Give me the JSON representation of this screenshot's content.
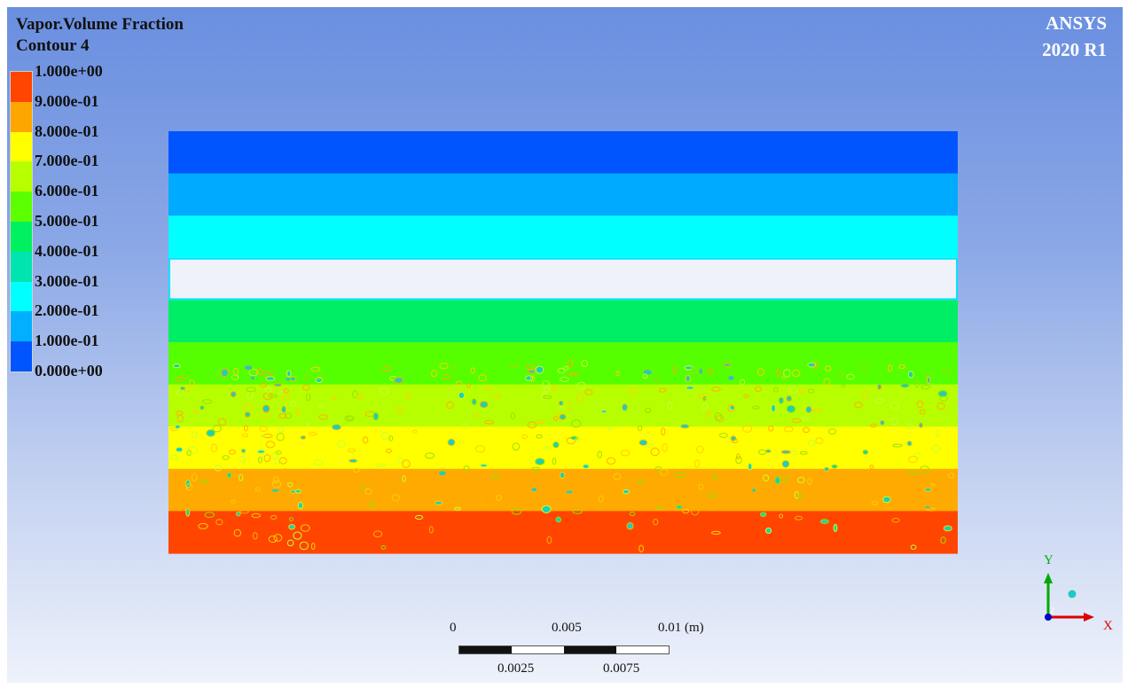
{
  "header": {
    "variable": "Vapor.Volume Fraction",
    "contour": "Contour 4"
  },
  "brand": {
    "name": "ANSYS",
    "version": "2020 R1"
  },
  "legend": {
    "labels": [
      "1.000e+00",
      "9.000e-01",
      "8.000e-01",
      "7.000e-01",
      "6.000e-01",
      "5.000e-01",
      "4.000e-01",
      "3.000e-01",
      "2.000e-01",
      "1.000e-01",
      "0.000e+00"
    ],
    "colors": [
      "#ff4500",
      "#ffa500",
      "#ffff00",
      "#b7ff00",
      "#5bff00",
      "#00f060",
      "#00e5b0",
      "#00ffff",
      "#00b0ff",
      "#0055ff"
    ]
  },
  "contour_bands": {
    "top_to_bottom_colors": [
      "#0055ff",
      "#00aaff",
      "#00ffff",
      "#f0f2fa",
      "#00ee66",
      "#55ff00",
      "#b7ff00",
      "#ffff00",
      "#ffaa00",
      "#ff4500"
    ]
  },
  "scale": {
    "top_labels": [
      "0",
      "0.005",
      "0.01 (m)"
    ],
    "bottom_labels": [
      "0.0025",
      "0.0075"
    ]
  },
  "axes": {
    "y_label": "Y",
    "x_label": "X",
    "y_color": "#00aa00",
    "x_color": "#dd0000",
    "z_color": "#0000cc"
  }
}
